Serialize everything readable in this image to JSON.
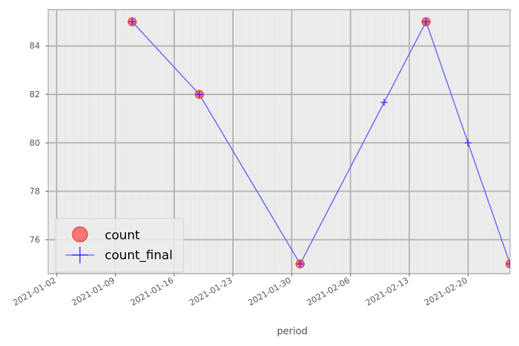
{
  "chart_data": {
    "type": "line",
    "title": "",
    "xlabel": "period",
    "ylabel": "",
    "grid": true,
    "legend_position": "bottom-left",
    "x_ticks": [
      "2021-01-02",
      "2021-01-09",
      "2021-01-16",
      "2021-01-23",
      "2021-01-30",
      "2021-02-06",
      "2021-02-13",
      "2021-02-20"
    ],
    "y_ticks": [
      76,
      78,
      80,
      82,
      84
    ],
    "xlim": [
      "2021-01-01",
      "2021-02-25"
    ],
    "ylim": [
      74.6,
      85.5
    ],
    "series": [
      {
        "name": "count",
        "kind": "scatter",
        "marker": "circle",
        "color": "#ff4d4d",
        "x": [
          "2021-01-11",
          "2021-01-19",
          "2021-01-31",
          "2021-02-15",
          "2021-02-25"
        ],
        "values": [
          85,
          82,
          75,
          85,
          75
        ]
      },
      {
        "name": "count_final",
        "kind": "line",
        "marker": "plus",
        "color": "#4d4dff",
        "x": [
          "2021-01-11",
          "2021-01-19",
          "2021-01-31",
          "2021-02-10",
          "2021-02-15",
          "2021-02-20",
          "2021-02-25"
        ],
        "values": [
          85,
          82,
          75,
          81.67,
          85,
          80,
          75
        ]
      }
    ],
    "legend": [
      "count",
      "count_final"
    ]
  }
}
